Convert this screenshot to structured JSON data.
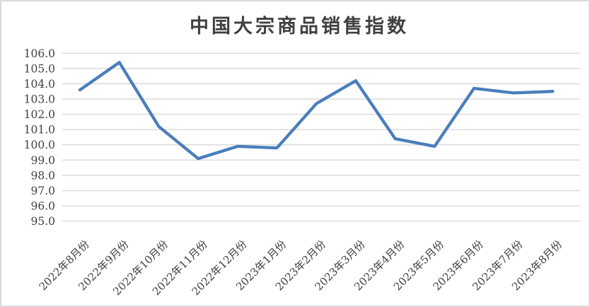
{
  "chart_data": {
    "type": "line",
    "title": "中国大宗商品销售指数",
    "categories": [
      "2022年8月份",
      "2022年9月份",
      "2022年10月份",
      "2022年11月份",
      "2022年12月份",
      "2023年1月份",
      "2023年2月份",
      "2023年3月份",
      "2023年4月份",
      "2023年5月份",
      "2023年6月份",
      "2023年7月份",
      "2023年8月份"
    ],
    "values": [
      103.6,
      105.4,
      101.2,
      99.1,
      99.9,
      99.8,
      102.7,
      104.2,
      100.4,
      99.9,
      103.7,
      103.4,
      103.5
    ],
    "xlabel": "",
    "ylabel": "",
    "ylim": [
      95.0,
      106.0
    ],
    "ytick_step": 1.0,
    "ytick_decimals": 1,
    "grid": true,
    "legend_position": "none",
    "x_label_rotation_deg": -45,
    "colors": {
      "line": "#4A7EBB",
      "gridline": "#D9D9D9",
      "text": "#404040",
      "frame_border": "#D9D9D9",
      "background": "#FFFFFF"
    }
  }
}
